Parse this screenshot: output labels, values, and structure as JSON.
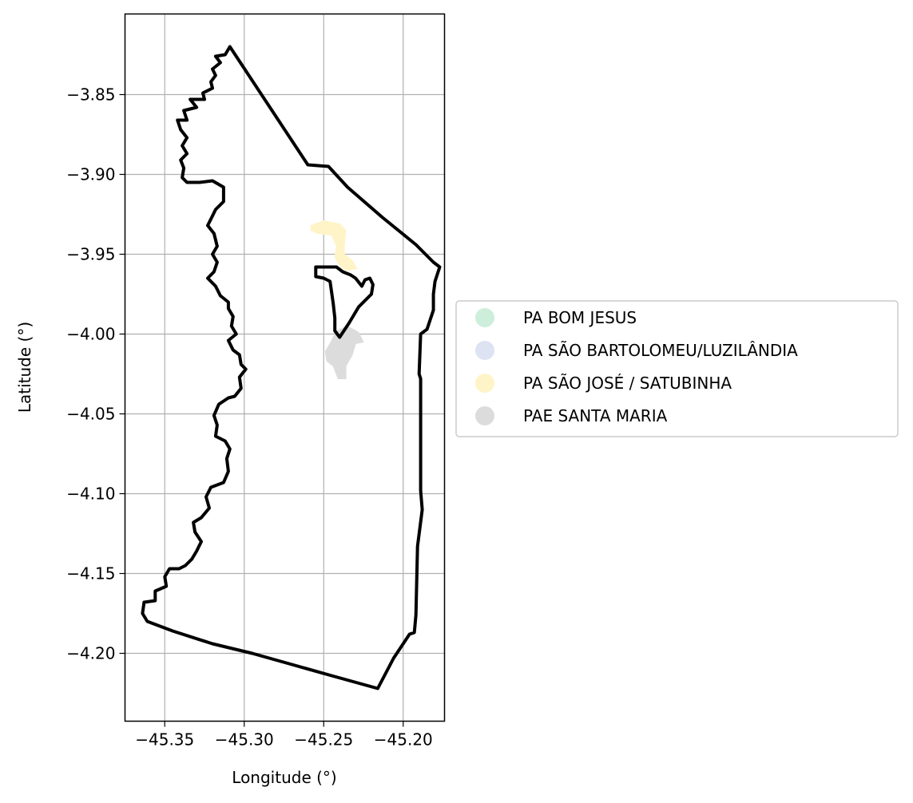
{
  "chart_data": {
    "type": "map",
    "xlabel": "Longitude (°)",
    "ylabel": "Latitude (°)",
    "xlim": [
      -45.375,
      -45.174
    ],
    "ylim": [
      -4.2425,
      -3.7995
    ],
    "xticks": [
      {
        "value": -45.35,
        "label": "−45.35"
      },
      {
        "value": -45.3,
        "label": "−45.30"
      },
      {
        "value": -45.25,
        "label": "−45.25"
      },
      {
        "value": -45.2,
        "label": "−45.20"
      }
    ],
    "yticks": [
      {
        "value": -3.85,
        "label": "−3.85"
      },
      {
        "value": -3.9,
        "label": "−3.90"
      },
      {
        "value": -3.95,
        "label": "−3.95"
      },
      {
        "value": -4.0,
        "label": "−4.00"
      },
      {
        "value": -4.05,
        "label": "−4.05"
      },
      {
        "value": -4.1,
        "label": "−4.10"
      },
      {
        "value": -4.15,
        "label": "−4.15"
      },
      {
        "value": -4.2,
        "label": "−4.20"
      }
    ],
    "grid": true,
    "legend_position": "center-right, outside plot",
    "legend": [
      {
        "label": "PA BOM JESUS",
        "color": "#cdeedb"
      },
      {
        "label": "PA SÃO BARTOLOMEU/LUZILÂNDIA",
        "color": "#dde3f2"
      },
      {
        "label": "PA SÃO JOSÉ / SATUBINHA",
        "color": "#fff4c8"
      },
      {
        "label": "PAE SANTA MARIA",
        "color": "#dcdcdc"
      }
    ],
    "boundary": {
      "color": "#000000",
      "coords": [
        [
          -45.309,
          -3.82
        ],
        [
          -45.312,
          -3.825
        ],
        [
          -45.318,
          -3.826
        ],
        [
          -45.315,
          -3.83
        ],
        [
          -45.32,
          -3.834
        ],
        [
          -45.318,
          -3.838
        ],
        [
          -45.321,
          -3.842
        ],
        [
          -45.32,
          -3.846
        ],
        [
          -45.326,
          -3.849
        ],
        [
          -45.325,
          -3.853
        ],
        [
          -45.334,
          -3.853
        ],
        [
          -45.33,
          -3.858
        ],
        [
          -45.338,
          -3.86
        ],
        [
          -45.336,
          -3.866
        ],
        [
          -45.342,
          -3.866
        ],
        [
          -45.34,
          -3.872
        ],
        [
          -45.336,
          -3.877
        ],
        [
          -45.339,
          -3.882
        ],
        [
          -45.336,
          -3.887
        ],
        [
          -45.34,
          -3.891
        ],
        [
          -45.338,
          -3.896
        ],
        [
          -45.339,
          -3.902
        ],
        [
          -45.336,
          -3.905
        ],
        [
          -45.328,
          -3.905
        ],
        [
          -45.32,
          -3.904
        ],
        [
          -45.313,
          -3.908
        ],
        [
          -45.313,
          -3.917
        ],
        [
          -45.318,
          -3.922
        ],
        [
          -45.32,
          -3.926
        ],
        [
          -45.323,
          -3.932
        ],
        [
          -45.319,
          -3.937
        ],
        [
          -45.317,
          -3.945
        ],
        [
          -45.32,
          -3.95
        ],
        [
          -45.317,
          -3.955
        ],
        [
          -45.319,
          -3.961
        ],
        [
          -45.323,
          -3.965
        ],
        [
          -45.318,
          -3.97
        ],
        [
          -45.315,
          -3.976
        ],
        [
          -45.31,
          -3.98
        ],
        [
          -45.31,
          -3.984
        ],
        [
          -45.307,
          -3.989
        ],
        [
          -45.308,
          -3.995
        ],
        [
          -45.305,
          -4.0
        ],
        [
          -45.31,
          -4.004
        ],
        [
          -45.307,
          -4.01
        ],
        [
          -45.303,
          -4.013
        ],
        [
          -45.302,
          -4.019
        ],
        [
          -45.299,
          -4.022
        ],
        [
          -45.303,
          -4.027
        ],
        [
          -45.302,
          -4.034
        ],
        [
          -45.306,
          -4.039
        ],
        [
          -45.31,
          -4.04
        ],
        [
          -45.316,
          -4.044
        ],
        [
          -45.319,
          -4.051
        ],
        [
          -45.317,
          -4.057
        ],
        [
          -45.318,
          -4.064
        ],
        [
          -45.312,
          -4.067
        ],
        [
          -45.309,
          -4.072
        ],
        [
          -45.311,
          -4.078
        ],
        [
          -45.31,
          -4.086
        ],
        [
          -45.313,
          -4.093
        ],
        [
          -45.321,
          -4.096
        ],
        [
          -45.324,
          -4.102
        ],
        [
          -45.322,
          -4.109
        ],
        [
          -45.327,
          -4.115
        ],
        [
          -45.332,
          -4.118
        ],
        [
          -45.331,
          -4.124
        ],
        [
          -45.327,
          -4.13
        ],
        [
          -45.33,
          -4.136
        ],
        [
          -45.333,
          -4.141
        ],
        [
          -45.337,
          -4.145
        ],
        [
          -45.341,
          -4.147
        ],
        [
          -45.347,
          -4.147
        ],
        [
          -45.35,
          -4.152
        ],
        [
          -45.349,
          -4.158
        ],
        [
          -45.356,
          -4.161
        ],
        [
          -45.356,
          -4.167
        ],
        [
          -45.363,
          -4.168
        ],
        [
          -45.364,
          -4.175
        ],
        [
          -45.361,
          -4.18
        ],
        [
          -45.345,
          -4.186
        ],
        [
          -45.32,
          -4.194
        ],
        [
          -45.295,
          -4.2
        ],
        [
          -45.27,
          -4.207
        ],
        [
          -45.245,
          -4.214
        ],
        [
          -45.216,
          -4.222
        ],
        [
          -45.206,
          -4.203
        ],
        [
          -45.196,
          -4.188
        ],
        [
          -45.193,
          -4.187
        ],
        [
          -45.192,
          -4.176
        ],
        [
          -45.191,
          -4.133
        ],
        [
          -45.188,
          -4.11
        ],
        [
          -45.189,
          -4.098
        ],
        [
          -45.189,
          -4.06
        ],
        [
          -45.189,
          -4.028
        ],
        [
          -45.19,
          -4.025
        ],
        [
          -45.189,
          -4.0
        ],
        [
          -45.185,
          -3.997
        ],
        [
          -45.181,
          -3.985
        ],
        [
          -45.181,
          -3.975
        ],
        [
          -45.18,
          -3.967
        ],
        [
          -45.177,
          -3.958
        ],
        [
          -45.181,
          -3.955
        ],
        [
          -45.192,
          -3.944
        ],
        [
          -45.213,
          -3.927
        ],
        [
          -45.235,
          -3.908
        ],
        [
          -45.247,
          -3.895
        ],
        [
          -45.26,
          -3.894
        ],
        [
          -45.309,
          -3.82
        ]
      ]
    },
    "enclave": {
      "color": "#000000",
      "coords": [
        [
          -45.255,
          -3.958
        ],
        [
          -45.242,
          -3.958
        ],
        [
          -45.238,
          -3.961
        ],
        [
          -45.233,
          -3.963
        ],
        [
          -45.23,
          -3.965
        ],
        [
          -45.226,
          -3.97
        ],
        [
          -45.224,
          -3.966
        ],
        [
          -45.221,
          -3.965
        ],
        [
          -45.219,
          -3.969
        ],
        [
          -45.22,
          -3.975
        ],
        [
          -45.228,
          -3.983
        ],
        [
          -45.234,
          -3.993
        ],
        [
          -45.24,
          -4.002
        ],
        [
          -45.243,
          -3.998
        ],
        [
          -45.243,
          -3.99
        ],
        [
          -45.244,
          -3.981
        ],
        [
          -45.246,
          -3.967
        ],
        [
          -45.25,
          -3.965
        ],
        [
          -45.255,
          -3.964
        ],
        [
          -45.255,
          -3.958
        ]
      ]
    },
    "regions": [
      {
        "label": "PA SÃO JOSÉ / SATUBINHA",
        "color": "#fff4c8",
        "coords": [
          [
            -45.258,
            -3.932
          ],
          [
            -45.25,
            -3.929
          ],
          [
            -45.24,
            -3.931
          ],
          [
            -45.236,
            -3.935
          ],
          [
            -45.237,
            -3.944
          ],
          [
            -45.237,
            -3.95
          ],
          [
            -45.232,
            -3.954
          ],
          [
            -45.229,
            -3.959
          ],
          [
            -45.234,
            -3.96
          ],
          [
            -45.236,
            -3.96
          ],
          [
            -45.24,
            -3.957
          ],
          [
            -45.243,
            -3.952
          ],
          [
            -45.242,
            -3.945
          ],
          [
            -45.245,
            -3.938
          ],
          [
            -45.254,
            -3.937
          ],
          [
            -45.258,
            -3.935
          ],
          [
            -45.258,
            -3.932
          ]
        ]
      },
      {
        "label": "PAE SANTA MARIA",
        "color": "#dcdcdc",
        "coords": [
          [
            -45.242,
            -3.998
          ],
          [
            -45.235,
            -3.995
          ],
          [
            -45.228,
            -3.999
          ],
          [
            -45.225,
            -4.005
          ],
          [
            -45.23,
            -4.006
          ],
          [
            -45.232,
            -4.013
          ],
          [
            -45.236,
            -4.02
          ],
          [
            -45.236,
            -4.028
          ],
          [
            -45.241,
            -4.028
          ],
          [
            -45.244,
            -4.02
          ],
          [
            -45.248,
            -4.017
          ],
          [
            -45.249,
            -4.011
          ],
          [
            -45.246,
            -4.006
          ],
          [
            -45.242,
            -3.998
          ]
        ]
      }
    ]
  }
}
